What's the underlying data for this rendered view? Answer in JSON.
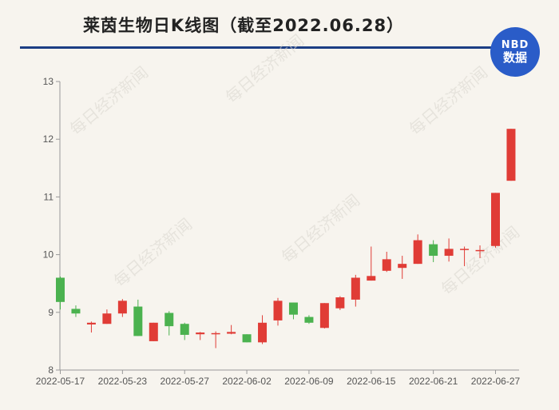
{
  "header": {
    "title": "莱茵生物日K线图（截至2022.06.28）"
  },
  "logo": {
    "line1": "NBD",
    "line2": "数据"
  },
  "watermark": {
    "text": "每日经济新闻"
  },
  "colors": {
    "up": "#e03c36",
    "down": "#4bb24f",
    "title_rule": "#1c3e84",
    "logo_bg": "#2a5cc8"
  },
  "chart_data": {
    "type": "candlestick",
    "title": "莱茵生物日K线图（截至2022.06.28）",
    "ylim": [
      8,
      13
    ],
    "yticks": [
      8,
      9,
      10,
      11,
      12,
      13
    ],
    "xtick_labels": [
      "2022-05-17",
      "2022-05-23",
      "2022-05-27",
      "2022-06-02",
      "2022-06-09",
      "2022-06-15",
      "2022-06-21",
      "2022-06-27"
    ],
    "xtick_index": [
      0,
      4,
      8,
      12,
      16,
      20,
      24,
      28
    ],
    "candles": [
      {
        "open": 9.6,
        "close": 9.18,
        "high": 9.62,
        "low": 9.05
      },
      {
        "open": 9.06,
        "close": 8.98,
        "high": 9.12,
        "low": 8.92
      },
      {
        "open": 8.79,
        "close": 8.82,
        "high": 8.84,
        "low": 8.65
      },
      {
        "open": 8.8,
        "close": 8.98,
        "high": 9.05,
        "low": 8.8
      },
      {
        "open": 8.98,
        "close": 9.2,
        "high": 9.23,
        "low": 8.92
      },
      {
        "open": 9.1,
        "close": 8.59,
        "high": 9.22,
        "low": 8.59
      },
      {
        "open": 8.5,
        "close": 8.82,
        "high": 8.82,
        "low": 8.5
      },
      {
        "open": 8.99,
        "close": 8.76,
        "high": 9.02,
        "low": 8.6
      },
      {
        "open": 8.8,
        "close": 8.61,
        "high": 8.82,
        "low": 8.52
      },
      {
        "open": 8.62,
        "close": 8.65,
        "high": 8.66,
        "low": 8.52
      },
      {
        "open": 8.62,
        "close": 8.64,
        "high": 8.67,
        "low": 8.38
      },
      {
        "open": 8.63,
        "close": 8.66,
        "high": 8.78,
        "low": 8.62
      },
      {
        "open": 8.62,
        "close": 8.48,
        "high": 8.62,
        "low": 8.48
      },
      {
        "open": 8.48,
        "close": 8.82,
        "high": 8.95,
        "low": 8.45
      },
      {
        "open": 8.86,
        "close": 9.2,
        "high": 9.25,
        "low": 8.77
      },
      {
        "open": 9.17,
        "close": 8.96,
        "high": 9.17,
        "low": 8.88
      },
      {
        "open": 8.92,
        "close": 8.82,
        "high": 8.95,
        "low": 8.8
      },
      {
        "open": 8.73,
        "close": 9.16,
        "high": 9.16,
        "low": 8.72
      },
      {
        "open": 9.07,
        "close": 9.26,
        "high": 9.28,
        "low": 9.04
      },
      {
        "open": 9.22,
        "close": 9.6,
        "high": 9.65,
        "low": 9.1
      },
      {
        "open": 9.55,
        "close": 9.63,
        "high": 10.14,
        "low": 9.55
      },
      {
        "open": 9.72,
        "close": 9.92,
        "high": 10.05,
        "low": 9.7
      },
      {
        "open": 9.77,
        "close": 9.84,
        "high": 9.98,
        "low": 9.58
      },
      {
        "open": 9.84,
        "close": 10.25,
        "high": 10.35,
        "low": 9.84
      },
      {
        "open": 10.18,
        "close": 9.98,
        "high": 10.25,
        "low": 9.87
      },
      {
        "open": 9.98,
        "close": 10.1,
        "high": 10.28,
        "low": 9.88
      },
      {
        "open": 10.08,
        "close": 10.1,
        "high": 10.14,
        "low": 9.8
      },
      {
        "open": 10.06,
        "close": 10.08,
        "high": 10.16,
        "low": 9.94
      },
      {
        "open": 10.15,
        "close": 11.07,
        "high": 11.07,
        "low": 10.12
      },
      {
        "open": 11.28,
        "close": 12.18,
        "high": 12.18,
        "low": 11.28
      }
    ]
  }
}
